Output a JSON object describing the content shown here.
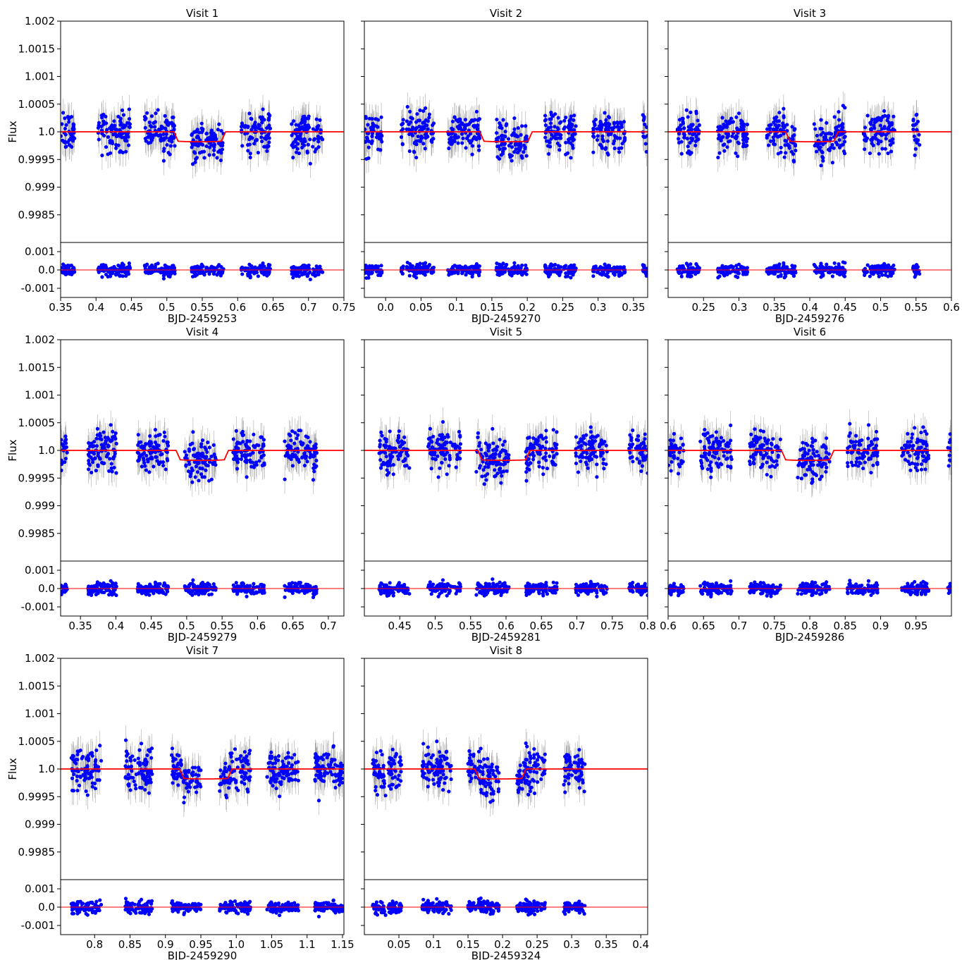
{
  "chart_data": [
    {
      "type": "scatter",
      "title": "Visit 1",
      "xlabel": "BJD-2459253",
      "ylabel": "Flux",
      "xlim": [
        0.35,
        0.75
      ],
      "xticks": [
        0.35,
        0.4,
        0.45,
        0.5,
        0.55,
        0.6,
        0.65,
        0.7,
        0.75
      ],
      "xtick_labels": [
        "0.35",
        "0.4",
        "0.45",
        "0.5",
        "0.55",
        "0.6",
        "0.65",
        "0.7",
        "0.75"
      ],
      "ylim": [
        0.998,
        1.002
      ],
      "yticks": [
        0.9985,
        0.999,
        0.9995,
        1.0,
        1.0005,
        1.001,
        1.0015,
        1.002
      ],
      "ytick_labels": [
        "0.9985",
        "0.999",
        "0.9995",
        "1.0",
        "1.0005",
        "1.001",
        "1.0015",
        "1.002"
      ],
      "res_ylim": [
        -0.0015,
        0.0015
      ],
      "res_yticks": [
        -0.001,
        0.0,
        0.001
      ],
      "res_ytick_labels": [
        "-0.001",
        "0.0",
        "0.001"
      ],
      "orbits": [
        [
          0.35,
          0.37
        ],
        [
          0.403,
          0.448
        ],
        [
          0.468,
          0.512
        ],
        [
          0.535,
          0.58
        ],
        [
          0.605,
          0.647
        ],
        [
          0.675,
          0.72
        ]
      ],
      "transit": {
        "t1": 0.51,
        "t4": 0.583,
        "depth": 0.00018
      },
      "data_color": "#0000ff",
      "model_color": "#ff0000",
      "errorbar_color": "#888888"
    },
    {
      "type": "scatter",
      "title": "Visit 2",
      "xlabel": "BJD-2459270",
      "ylabel": "",
      "xlim": [
        -0.03,
        0.37
      ],
      "xticks": [
        0.0,
        0.05,
        0.1,
        0.15,
        0.2,
        0.25,
        0.3,
        0.35
      ],
      "xtick_labels": [
        "0.0",
        "0.05",
        "0.1",
        "0.15",
        "0.2",
        "0.25",
        "0.3",
        "0.35"
      ],
      "ylim": [
        0.998,
        1.002
      ],
      "yticks": [],
      "ytick_labels": [],
      "res_ylim": [
        -0.0015,
        0.0015
      ],
      "res_yticks": [],
      "res_ytick_labels": [],
      "orbits": [
        [
          -0.03,
          -0.005
        ],
        [
          0.022,
          0.068
        ],
        [
          0.088,
          0.133
        ],
        [
          0.156,
          0.2
        ],
        [
          0.225,
          0.27
        ],
        [
          0.293,
          0.338
        ],
        [
          0.363,
          0.37
        ]
      ],
      "transit": {
        "t1": 0.133,
        "t4": 0.207,
        "depth": 0.00018
      },
      "data_color": "#0000ff",
      "model_color": "#ff0000",
      "errorbar_color": "#888888"
    },
    {
      "type": "scatter",
      "title": "Visit 3",
      "xlabel": "BJD-2459276",
      "ylabel": "",
      "xlim": [
        0.2,
        0.6
      ],
      "xticks": [
        0.25,
        0.3,
        0.35,
        0.4,
        0.45,
        0.5,
        0.55,
        0.6
      ],
      "xtick_labels": [
        "0.25",
        "0.3",
        "0.35",
        "0.4",
        "0.45",
        "0.5",
        "0.55",
        "0.6"
      ],
      "ylim": [
        0.998,
        1.002
      ],
      "yticks": [],
      "ytick_labels": [],
      "res_ylim": [
        -0.0015,
        0.0015
      ],
      "res_yticks": [],
      "res_ytick_labels": [],
      "orbits": [
        [
          0.213,
          0.246
        ],
        [
          0.27,
          0.313
        ],
        [
          0.338,
          0.38
        ],
        [
          0.406,
          0.45
        ],
        [
          0.476,
          0.52
        ],
        [
          0.545,
          0.555
        ]
      ],
      "transit": {
        "t1": 0.366,
        "t4": 0.44,
        "depth": 0.00018
      },
      "data_color": "#0000ff",
      "model_color": "#ff0000",
      "errorbar_color": "#888888"
    },
    {
      "type": "scatter",
      "title": "Visit 4",
      "xlabel": "BJD-2459279",
      "ylabel": "Flux",
      "xlim": [
        0.322,
        0.722
      ],
      "xticks": [
        0.35,
        0.4,
        0.45,
        0.5,
        0.55,
        0.6,
        0.65,
        0.7
      ],
      "xtick_labels": [
        "0.35",
        "0.4",
        "0.45",
        "0.5",
        "0.55",
        "0.6",
        "0.65",
        "0.7"
      ],
      "ylim": [
        0.998,
        1.002
      ],
      "yticks": [
        0.9985,
        0.999,
        0.9995,
        1.0,
        1.0005,
        1.001,
        1.0015,
        1.002
      ],
      "ytick_labels": [
        "0.9985",
        "0.999",
        "0.9995",
        "1.0",
        "1.0005",
        "1.001",
        "1.0015",
        "1.002"
      ],
      "res_ylim": [
        -0.0015,
        0.0015
      ],
      "res_yticks": [
        -0.001,
        0.0,
        0.001
      ],
      "res_ytick_labels": [
        "-0.001",
        "0.0",
        "0.001"
      ],
      "orbits": [
        [
          0.322,
          0.332
        ],
        [
          0.36,
          0.404
        ],
        [
          0.43,
          0.474
        ],
        [
          0.497,
          0.542
        ],
        [
          0.565,
          0.61
        ],
        [
          0.638,
          0.684
        ]
      ],
      "transit": {
        "t1": 0.485,
        "t4": 0.559,
        "depth": 0.00018
      },
      "data_color": "#0000ff",
      "model_color": "#ff0000",
      "errorbar_color": "#888888"
    },
    {
      "type": "scatter",
      "title": "Visit 5",
      "xlabel": "BJD-2459281",
      "ylabel": "",
      "xlim": [
        0.4,
        0.8
      ],
      "xticks": [
        0.45,
        0.5,
        0.55,
        0.6,
        0.65,
        0.7,
        0.75,
        0.8
      ],
      "xtick_labels": [
        "0.45",
        "0.5",
        "0.55",
        "0.6",
        "0.65",
        "0.7",
        "0.75",
        "0.8"
      ],
      "ylim": [
        0.998,
        1.002
      ],
      "yticks": [],
      "ytick_labels": [],
      "res_ylim": [
        -0.0015,
        0.0015
      ],
      "res_yticks": [],
      "res_ytick_labels": [],
      "orbits": [
        [
          0.421,
          0.464
        ],
        [
          0.49,
          0.536
        ],
        [
          0.558,
          0.604
        ],
        [
          0.628,
          0.672
        ],
        [
          0.698,
          0.743
        ],
        [
          0.773,
          0.8
        ]
      ],
      "transit": {
        "t1": 0.56,
        "t4": 0.634,
        "depth": 0.00018
      },
      "data_color": "#0000ff",
      "model_color": "#ff0000",
      "errorbar_color": "#888888"
    },
    {
      "type": "scatter",
      "title": "Visit 6",
      "xlabel": "BJD-2459286",
      "ylabel": "",
      "xlim": [
        0.6,
        1.0
      ],
      "xticks": [
        0.6,
        0.65,
        0.7,
        0.75,
        0.8,
        0.85,
        0.9,
        0.95
      ],
      "xtick_labels": [
        "0.6",
        "0.65",
        "0.7",
        "0.75",
        "0.8",
        "0.85",
        "0.9",
        "0.95"
      ],
      "ylim": [
        0.998,
        1.002
      ],
      "yticks": [],
      "ytick_labels": [],
      "res_ylim": [
        -0.0015,
        0.0015
      ],
      "res_yticks": [],
      "res_ytick_labels": [],
      "orbits": [
        [
          0.6,
          0.622
        ],
        [
          0.645,
          0.69
        ],
        [
          0.715,
          0.76
        ],
        [
          0.783,
          0.828
        ],
        [
          0.853,
          0.896
        ],
        [
          0.93,
          0.968
        ],
        [
          0.995,
          1.0
        ]
      ],
      "transit": {
        "t1": 0.76,
        "t4": 0.834,
        "depth": 0.00018
      },
      "data_color": "#0000ff",
      "model_color": "#ff0000",
      "errorbar_color": "#888888"
    },
    {
      "type": "scatter",
      "title": "Visit 7",
      "xlabel": "BJD-2459290",
      "ylabel": "Flux",
      "xlim": [
        0.752,
        1.152
      ],
      "xticks": [
        0.8,
        0.85,
        0.9,
        0.95,
        1.0,
        1.05,
        1.1,
        1.15
      ],
      "xtick_labels": [
        "0.8",
        "0.85",
        "0.9",
        "0.95",
        "1.0",
        "1.05",
        "1.1",
        "1.15"
      ],
      "ylim": [
        0.998,
        1.002
      ],
      "yticks": [
        0.9985,
        0.999,
        0.9995,
        1.0,
        1.0005,
        1.001,
        1.0015,
        1.002
      ],
      "ytick_labels": [
        "0.9985",
        "0.999",
        "0.9995",
        "1.0",
        "1.0005",
        "1.001",
        "1.0015",
        "1.002"
      ],
      "res_ylim": [
        -0.0015,
        0.0015
      ],
      "res_yticks": [
        -0.001,
        0.0,
        0.001
      ],
      "res_ytick_labels": [
        "-0.001",
        "0.0",
        "0.001"
      ],
      "orbits": [
        [
          0.767,
          0.81
        ],
        [
          0.84,
          0.882
        ],
        [
          0.908,
          0.95
        ],
        [
          0.976,
          1.02
        ],
        [
          1.043,
          1.088
        ],
        [
          1.11,
          1.152
        ]
      ],
      "transit": {
        "t1": 0.92,
        "t4": 0.994,
        "depth": 0.00018
      },
      "data_color": "#0000ff",
      "model_color": "#ff0000",
      "errorbar_color": "#888888"
    },
    {
      "type": "scatter",
      "title": "Visit 8",
      "xlabel": "BJD-2459324",
      "ylabel": "",
      "xlim": [
        0.0,
        0.41
      ],
      "xticks": [
        0.05,
        0.1,
        0.15,
        0.2,
        0.25,
        0.3,
        0.35,
        0.4
      ],
      "xtick_labels": [
        "0.05",
        "0.1",
        "0.15",
        "0.2",
        "0.25",
        "0.3",
        "0.35",
        "0.4"
      ],
      "ylim": [
        0.998,
        1.002
      ],
      "yticks": [],
      "ytick_labels": [],
      "res_ylim": [
        -0.0015,
        0.0015
      ],
      "res_yticks": [],
      "res_ytick_labels": [],
      "orbits": [
        [
          0.012,
          0.054
        ],
        [
          0.083,
          0.126
        ],
        [
          0.15,
          0.195
        ],
        [
          0.22,
          0.262
        ],
        [
          0.288,
          0.32
        ]
      ],
      "transit": {
        "t1": 0.16,
        "t4": 0.234,
        "depth": 0.00018
      },
      "data_color": "#0000ff",
      "model_color": "#ff0000",
      "errorbar_color": "#888888"
    }
  ]
}
